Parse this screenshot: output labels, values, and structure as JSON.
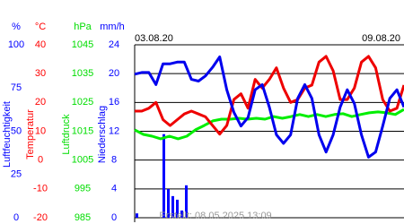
{
  "chart_data": {
    "type": "multi-axis-line",
    "start_label": "03.08.20",
    "end_label": "09.08.20",
    "footer": "Erstellt: 08.05.2025 13:09",
    "axes": [
      {
        "unit": "%",
        "label": "Luftfeuchtigkeit",
        "color": "#0000ff",
        "ylim": [
          0,
          100
        ],
        "yticks": [
          0,
          25,
          50,
          75,
          100
        ]
      },
      {
        "unit": "°C",
        "label": "Temperatur",
        "color": "#ff0000",
        "ylim": [
          -20,
          40
        ],
        "yticks": [
          -20,
          -10,
          0,
          10,
          20,
          30,
          40
        ]
      },
      {
        "unit": "hPa",
        "label": "Luftdruck",
        "color": "#00dd00",
        "ylim": [
          985,
          1045
        ],
        "yticks": [
          985,
          995,
          1005,
          1015,
          1025,
          1035,
          1045
        ]
      },
      {
        "unit": "mm/h",
        "label": "Niederschlag",
        "color": "#0000ff",
        "ylim": [
          0,
          24
        ],
        "yticks": [
          0,
          4,
          8,
          12,
          16,
          20,
          24
        ]
      }
    ],
    "grid_axis": 1,
    "series": [
      {
        "kind": "bar",
        "axis": 3,
        "color": "#0000ff",
        "values": [
          0.6,
          0,
          0,
          0,
          0,
          0,
          11.6,
          4,
          3,
          2.5,
          1,
          4.5,
          0,
          0,
          0,
          0,
          0,
          0,
          0,
          0,
          0,
          0,
          0,
          0,
          0,
          0,
          0,
          0,
          0,
          0,
          0,
          0,
          0,
          0,
          0,
          0,
          0,
          0,
          0,
          0,
          0,
          0,
          0,
          0,
          0,
          0,
          0,
          0,
          0,
          0,
          0,
          0,
          0,
          0,
          0,
          0,
          0,
          0,
          0,
          0
        ]
      },
      {
        "kind": "line",
        "axis": 2,
        "color": "#00ee00",
        "values": [
          1015.5,
          1013.9,
          1013.3,
          1012.4,
          1013.3,
          1012.4,
          1013.3,
          1015.5,
          1017,
          1018.6,
          1019.2,
          1019.2,
          1019.5,
          1019.2,
          1019.5,
          1019.2,
          1020.1,
          1019.5,
          1020.1,
          1020.8,
          1020.1,
          1020.8,
          1020.1,
          1020.8,
          1021.1,
          1020.1,
          1020.8,
          1021.4,
          1021.7,
          1021.4,
          1020.8,
          1022.6
        ]
      },
      {
        "kind": "line",
        "axis": 1,
        "color": "#ee0000",
        "values": [
          17,
          17,
          18,
          20,
          14,
          12,
          14,
          16,
          17,
          16,
          15,
          12,
          9,
          12,
          21,
          23,
          18,
          28,
          25,
          28,
          32,
          25,
          20,
          21,
          25,
          26,
          34,
          36,
          31,
          21,
          21,
          25,
          34,
          36,
          32,
          21,
          17,
          18,
          26
        ]
      },
      {
        "kind": "line",
        "axis": 0,
        "color": "#0000ee",
        "values": [
          83,
          84,
          84,
          77,
          89,
          89,
          90,
          90,
          80,
          79,
          82,
          87,
          93,
          74,
          61,
          53,
          58,
          74,
          77,
          64,
          48,
          43,
          48,
          69,
          77,
          69,
          48,
          38,
          48,
          64,
          74,
          66,
          48,
          35,
          38,
          53,
          69,
          74,
          64
        ]
      }
    ]
  }
}
